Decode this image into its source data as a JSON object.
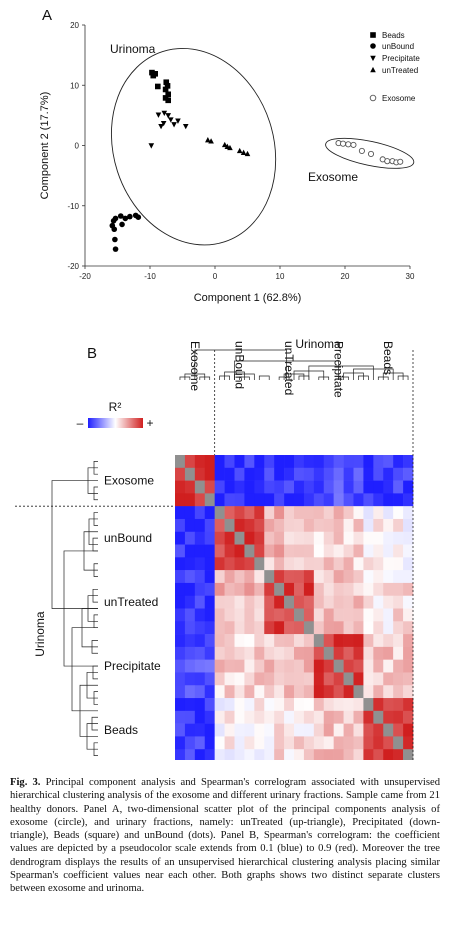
{
  "panelA": {
    "label": "A",
    "chart_data": {
      "type": "scatter",
      "xlabel": "Component 1  (62.8%)",
      "ylabel": "Component 2  (17.7%)",
      "xlim": [
        -20,
        30
      ],
      "ylim": [
        -20,
        20
      ],
      "xticks": [
        "-20",
        "-10",
        "0",
        "10",
        "20",
        "30"
      ],
      "yticks": [
        "-20",
        "-10",
        "0",
        "10",
        "20"
      ],
      "annotations": [
        "Urinoma",
        "Exosome"
      ],
      "legend_position": "top-right",
      "series": [
        {
          "name": "Beads",
          "marker": "square",
          "points": [
            [
              -9.7,
              12.1
            ],
            [
              -9.5,
              11.6
            ],
            [
              -9.2,
              11.9
            ],
            [
              -8.8,
              9.8
            ],
            [
              -7.5,
              10.5
            ],
            [
              -7.3,
              9.9
            ],
            [
              -7.6,
              9.3
            ],
            [
              -7.2,
              8.5
            ],
            [
              -7.6,
              7.9
            ],
            [
              -7.2,
              7.5
            ]
          ]
        },
        {
          "name": "unBound",
          "marker": "circle",
          "points": [
            [
              -15.6,
              -12.5
            ],
            [
              -15.3,
              -12.1
            ],
            [
              -15.8,
              -13.3
            ],
            [
              -15.5,
              -13.9
            ],
            [
              -14.5,
              -11.7
            ],
            [
              -13.8,
              -12.1
            ],
            [
              -13.1,
              -11.8
            ],
            [
              -12.2,
              -11.6
            ],
            [
              -11.8,
              -11.9
            ],
            [
              -14.3,
              -13.1
            ],
            [
              -15.4,
              -15.6
            ],
            [
              -15.3,
              -17.2
            ]
          ]
        },
        {
          "name": "Precipitate",
          "marker": "down-triangle",
          "points": [
            [
              -8.7,
              5.1
            ],
            [
              -7.8,
              5.4
            ],
            [
              -7.2,
              5.0
            ],
            [
              -6.8,
              4.3
            ],
            [
              -5.7,
              4.1
            ],
            [
              -4.5,
              3.2
            ],
            [
              -6.3,
              3.5
            ],
            [
              -7.9,
              3.7
            ],
            [
              -8.3,
              3.2
            ],
            [
              -9.8,
              0.0
            ]
          ]
        },
        {
          "name": "unTreated",
          "marker": "up-triangle",
          "points": [
            [
              -1.1,
              0.9
            ],
            [
              -0.6,
              0.7
            ],
            [
              1.5,
              0.1
            ],
            [
              1.9,
              -0.2
            ],
            [
              2.3,
              -0.4
            ],
            [
              3.8,
              -0.9
            ],
            [
              4.4,
              -1.2
            ],
            [
              5.0,
              -1.4
            ]
          ]
        },
        {
          "name": "Exosome",
          "marker": "open-circle",
          "points": [
            [
              19.0,
              0.4
            ],
            [
              19.7,
              0.3
            ],
            [
              20.5,
              0.2
            ],
            [
              21.3,
              0.1
            ],
            [
              22.6,
              -0.9
            ],
            [
              24.0,
              -1.4
            ],
            [
              25.8,
              -2.3
            ],
            [
              26.5,
              -2.6
            ],
            [
              27.3,
              -2.6
            ],
            [
              27.9,
              -2.8
            ],
            [
              28.5,
              -2.7
            ]
          ]
        }
      ],
      "colors": {
        "filled": "#000000",
        "open": "#666666"
      }
    }
  },
  "panelB": {
    "label": "B",
    "chart_data": {
      "type": "heatmap",
      "title": "",
      "scale_label": "R²",
      "scale_minus": "–",
      "scale_plus": "+",
      "scale_range": [
        0.1,
        0.9
      ],
      "colors": {
        "low": "#1f1fff",
        "mid": "#ffffff",
        "high": "#d01f1f",
        "diagonal": "#909090"
      },
      "groups": [
        "Exosome",
        "unBound",
        "unTreated",
        "Precipitate",
        "Beads"
      ],
      "group_sizes": [
        4,
        5,
        5,
        5,
        5
      ],
      "cluster_label": "Urinoma",
      "block_values": [
        [
          0.9,
          0.12,
          0.12,
          0.18,
          0.14
        ],
        [
          0.12,
          0.85,
          0.62,
          0.58,
          0.52
        ],
        [
          0.12,
          0.62,
          0.85,
          0.6,
          0.55
        ],
        [
          0.18,
          0.58,
          0.6,
          0.85,
          0.6
        ],
        [
          0.14,
          0.52,
          0.55,
          0.6,
          0.85
        ]
      ]
    }
  },
  "caption": {
    "fig": "Fig. 3.",
    "text": " Principal component analysis and Spearman's correlogram associated with unsupervised hierarchical clustering analysis of the exosome and different urinary fractions. Sample came from 21 healthy donors. Panel A, two-dimensional scatter plot of the principal components analysis of exosome (circle), and urinary fractions, namely: unTreated (up-triangle), Precipitated (down-triangle), Beads (square) and unBound (dots). Panel B, Spearman's correlogram: the coefficient values are depicted by a pseudocolor scale extends from 0.1 (blue) to 0.9 (red). Moreover the tree dendrogram displays the results of an unsupervised hierarchical clustering analysis placing similar Spearman's coefficient values near each other. Both graphs shows two distinct separate clusters between exosome and urinoma."
  }
}
